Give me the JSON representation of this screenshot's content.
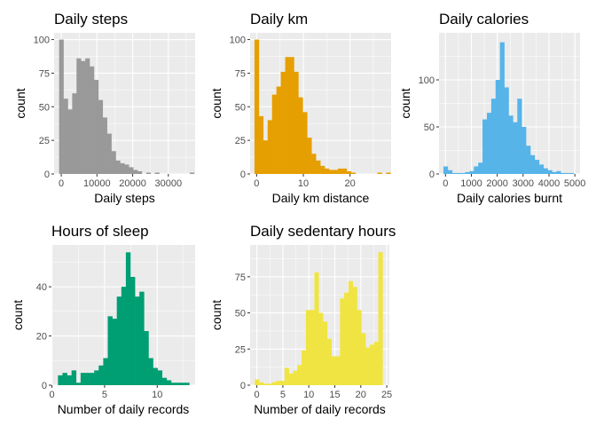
{
  "chart_data": [
    {
      "type": "bar",
      "title": "Daily steps",
      "xlabel": "Daily steps",
      "ylabel": "count",
      "color": "#999999",
      "xlim": [
        -2000,
        37500
      ],
      "ylim": [
        0,
        105
      ],
      "xticks": [
        0,
        10000,
        20000,
        30000
      ],
      "xtick_labels": [
        "0",
        "10000",
        "20000",
        "30000"
      ],
      "yticks": [
        0,
        25,
        50,
        75,
        100
      ],
      "ytick_labels": [
        "0",
        "25",
        "50",
        "75",
        "100"
      ],
      "bin_start": -600,
      "bin_width": 1220,
      "values": [
        100,
        56,
        48,
        60,
        86,
        84,
        86,
        80,
        70,
        55,
        42,
        30,
        17,
        10,
        8,
        7,
        5,
        3,
        2,
        0,
        1,
        0,
        1,
        0,
        0,
        0,
        0,
        0,
        0,
        0,
        1
      ]
    },
    {
      "type": "bar",
      "title": "Daily km",
      "xlabel": "Daily km distance",
      "ylabel": "count",
      "color": "#E69F00",
      "xlim": [
        -1.4,
        28.8
      ],
      "ylim": [
        0,
        105
      ],
      "xticks": [
        0,
        10,
        20
      ],
      "xtick_labels": [
        "0",
        "10",
        "20"
      ],
      "yticks": [
        0,
        25,
        50,
        75,
        100
      ],
      "ytick_labels": [
        "0",
        "25",
        "50",
        "75",
        "100"
      ],
      "bin_start": -0.47,
      "bin_width": 0.94,
      "values": [
        100,
        43,
        25,
        40,
        59,
        65,
        76,
        87,
        87,
        76,
        57,
        46,
        27,
        15,
        10,
        6,
        4,
        3,
        3,
        4,
        4,
        2,
        1,
        0,
        0,
        0,
        0,
        0,
        1,
        0,
        1
      ]
    },
    {
      "type": "bar",
      "title": "Daily calories",
      "xlabel": "Daily calories burnt",
      "ylabel": "count",
      "color": "#56B4E9",
      "xlim": [
        -250,
        5200
      ],
      "ylim": [
        0,
        150
      ],
      "xticks": [
        0,
        1000,
        2000,
        3000,
        4000,
        5000
      ],
      "xtick_labels": [
        "0",
        "1000",
        "2000",
        "3000",
        "4000",
        "5000"
      ],
      "yticks": [
        0,
        50,
        100
      ],
      "ytick_labels": [
        "0",
        "50",
        "100"
      ],
      "bin_start": -80,
      "bin_width": 168,
      "values": [
        8,
        4,
        1,
        1,
        1,
        2,
        3,
        8,
        12,
        58,
        65,
        80,
        100,
        140,
        92,
        62,
        55,
        80,
        50,
        30,
        20,
        15,
        10,
        6,
        4,
        2,
        3,
        1,
        1,
        1
      ]
    },
    {
      "type": "bar",
      "title": "Hours of sleep",
      "xlabel": "Number of daily records",
      "ylabel": "count",
      "color": "#009E73",
      "xlim": [
        -0.05,
        13.6
      ],
      "ylim": [
        0,
        57
      ],
      "xticks": [
        0,
        5,
        10
      ],
      "xtick_labels": [
        "0",
        "5",
        "10"
      ],
      "yticks": [
        0,
        20,
        40
      ],
      "ytick_labels": [
        "0",
        "20",
        "40"
      ],
      "bin_start": 0.57,
      "bin_width": 0.43,
      "values": [
        4,
        5,
        4,
        6,
        1,
        5,
        5,
        5,
        6,
        8,
        11,
        28,
        27,
        36,
        40,
        54,
        44,
        36,
        38,
        22,
        11,
        7,
        6,
        3,
        2,
        1,
        1,
        1,
        1
      ]
    },
    {
      "type": "bar",
      "title": "Daily sedentary hours",
      "xlabel": "Number of daily records",
      "ylabel": "count",
      "color": "#F0E442",
      "xlim": [
        -1.3,
        25.5
      ],
      "ylim": [
        0,
        97
      ],
      "xticks": [
        0,
        5,
        10,
        15,
        20,
        25
      ],
      "xtick_labels": [
        "0",
        "5",
        "10",
        "15",
        "20",
        "25"
      ],
      "yticks": [
        0,
        25,
        50,
        75
      ],
      "ytick_labels": [
        "0",
        "25",
        "50",
        "75"
      ],
      "bin_start": -0.41,
      "bin_width": 0.82,
      "values": [
        4,
        2,
        1,
        1,
        2,
        3,
        3,
        12,
        8,
        10,
        14,
        24,
        52,
        52,
        78,
        50,
        44,
        32,
        20,
        20,
        60,
        64,
        72,
        68,
        52,
        36,
        26,
        28,
        30,
        92
      ]
    }
  ]
}
